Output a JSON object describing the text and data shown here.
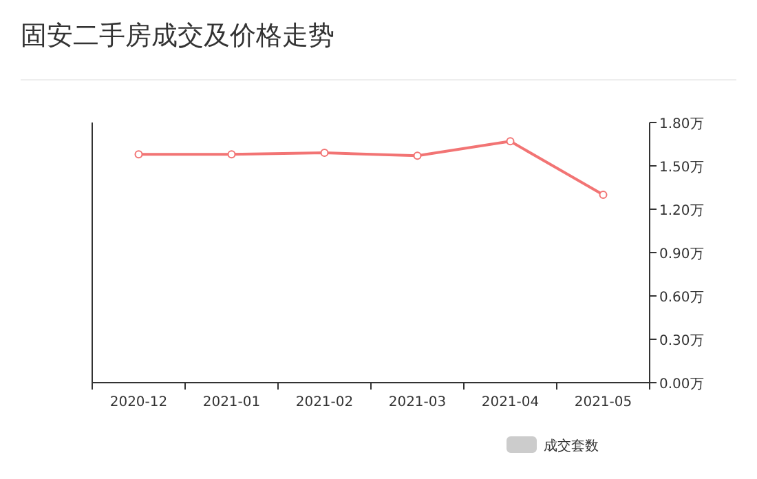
{
  "chart_data": {
    "type": "line",
    "title": "固安二手房成交及价格走势",
    "categories": [
      "2020-12",
      "2021-01",
      "2021-02",
      "2021-03",
      "2021-04",
      "2021-05"
    ],
    "series": [
      {
        "name": "成交套数",
        "type": "bar",
        "color": "#cccccc",
        "values": [
          null,
          null,
          null,
          null,
          null,
          null
        ]
      },
      {
        "axis": "y2",
        "color": "#f27474",
        "values": [
          1.58,
          1.58,
          1.59,
          1.57,
          1.67,
          1.3
        ]
      }
    ],
    "y2lim": [
      0,
      1.8
    ],
    "y2ticks": [
      {
        "value": 0,
        "label": "0.00万"
      },
      {
        "value": 0.3,
        "label": "0.30万"
      },
      {
        "value": 0.6,
        "label": "0.60万"
      },
      {
        "value": 0.9,
        "label": "0.90万"
      },
      {
        "value": 1.2,
        "label": "1.20万"
      },
      {
        "value": 1.5,
        "label": "1.50万"
      },
      {
        "value": 1.8,
        "label": "1.80万"
      }
    ],
    "legend": "bottom right",
    "marker": "circle"
  }
}
